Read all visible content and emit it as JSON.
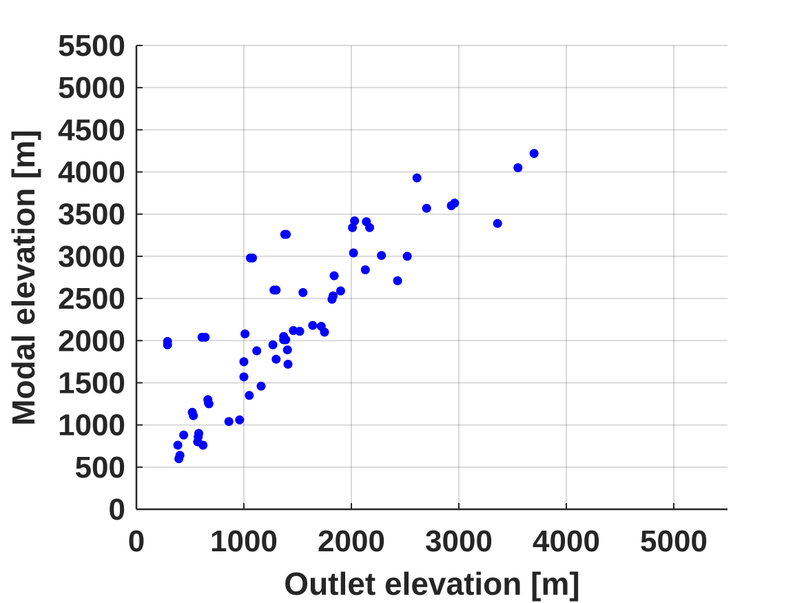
{
  "chart_data": {
    "type": "scatter",
    "title": "",
    "xlabel": "Outlet elevation [m]",
    "ylabel": "Modal elevation [m]",
    "xlim": [
      0,
      5500
    ],
    "ylim": [
      0,
      5500
    ],
    "xticks": [
      "0",
      "1000",
      "2000",
      "3000",
      "4000",
      "5000"
    ],
    "yticks": [
      "0",
      "500",
      "1000",
      "1500",
      "2000",
      "2500",
      "3000",
      "3500",
      "4000",
      "4500",
      "5000",
      "5500"
    ],
    "grid": true,
    "marker_color": "#0000ff",
    "series": [
      {
        "points": [
          [
            290,
            1990
          ],
          [
            290,
            1950
          ],
          [
            385,
            760
          ],
          [
            395,
            600
          ],
          [
            405,
            640
          ],
          [
            440,
            880
          ],
          [
            520,
            1150
          ],
          [
            530,
            1110
          ],
          [
            570,
            800
          ],
          [
            575,
            860
          ],
          [
            580,
            900
          ],
          [
            610,
            2040
          ],
          [
            620,
            760
          ],
          [
            640,
            2040
          ],
          [
            665,
            1300
          ],
          [
            670,
            1260
          ],
          [
            675,
            1250
          ],
          [
            860,
            1040
          ],
          [
            960,
            1060
          ],
          [
            1000,
            1750
          ],
          [
            1000,
            1570
          ],
          [
            1010,
            2080
          ],
          [
            1050,
            1350
          ],
          [
            1060,
            2980
          ],
          [
            1080,
            2980
          ],
          [
            1120,
            1880
          ],
          [
            1160,
            1460
          ],
          [
            1270,
            1950
          ],
          [
            1280,
            2600
          ],
          [
            1300,
            2600
          ],
          [
            1300,
            1780
          ],
          [
            1370,
            2050
          ],
          [
            1370,
            2010
          ],
          [
            1380,
            3260
          ],
          [
            1390,
            2010
          ],
          [
            1395,
            3260
          ],
          [
            1405,
            1890
          ],
          [
            1410,
            1720
          ],
          [
            1460,
            2120
          ],
          [
            1520,
            2110
          ],
          [
            1550,
            2570
          ],
          [
            1640,
            2180
          ],
          [
            1720,
            2170
          ],
          [
            1750,
            2100
          ],
          [
            1820,
            2490
          ],
          [
            1830,
            2530
          ],
          [
            1840,
            2770
          ],
          [
            1900,
            2590
          ],
          [
            2010,
            3340
          ],
          [
            2020,
            3040
          ],
          [
            2030,
            3420
          ],
          [
            2130,
            2840
          ],
          [
            2140,
            3410
          ],
          [
            2170,
            3340
          ],
          [
            2280,
            3010
          ],
          [
            2430,
            2710
          ],
          [
            2520,
            3000
          ],
          [
            2610,
            3930
          ],
          [
            2700,
            3570
          ],
          [
            2930,
            3600
          ],
          [
            2960,
            3630
          ],
          [
            3360,
            3390
          ],
          [
            3550,
            4050
          ],
          [
            3700,
            4220
          ]
        ]
      }
    ]
  }
}
